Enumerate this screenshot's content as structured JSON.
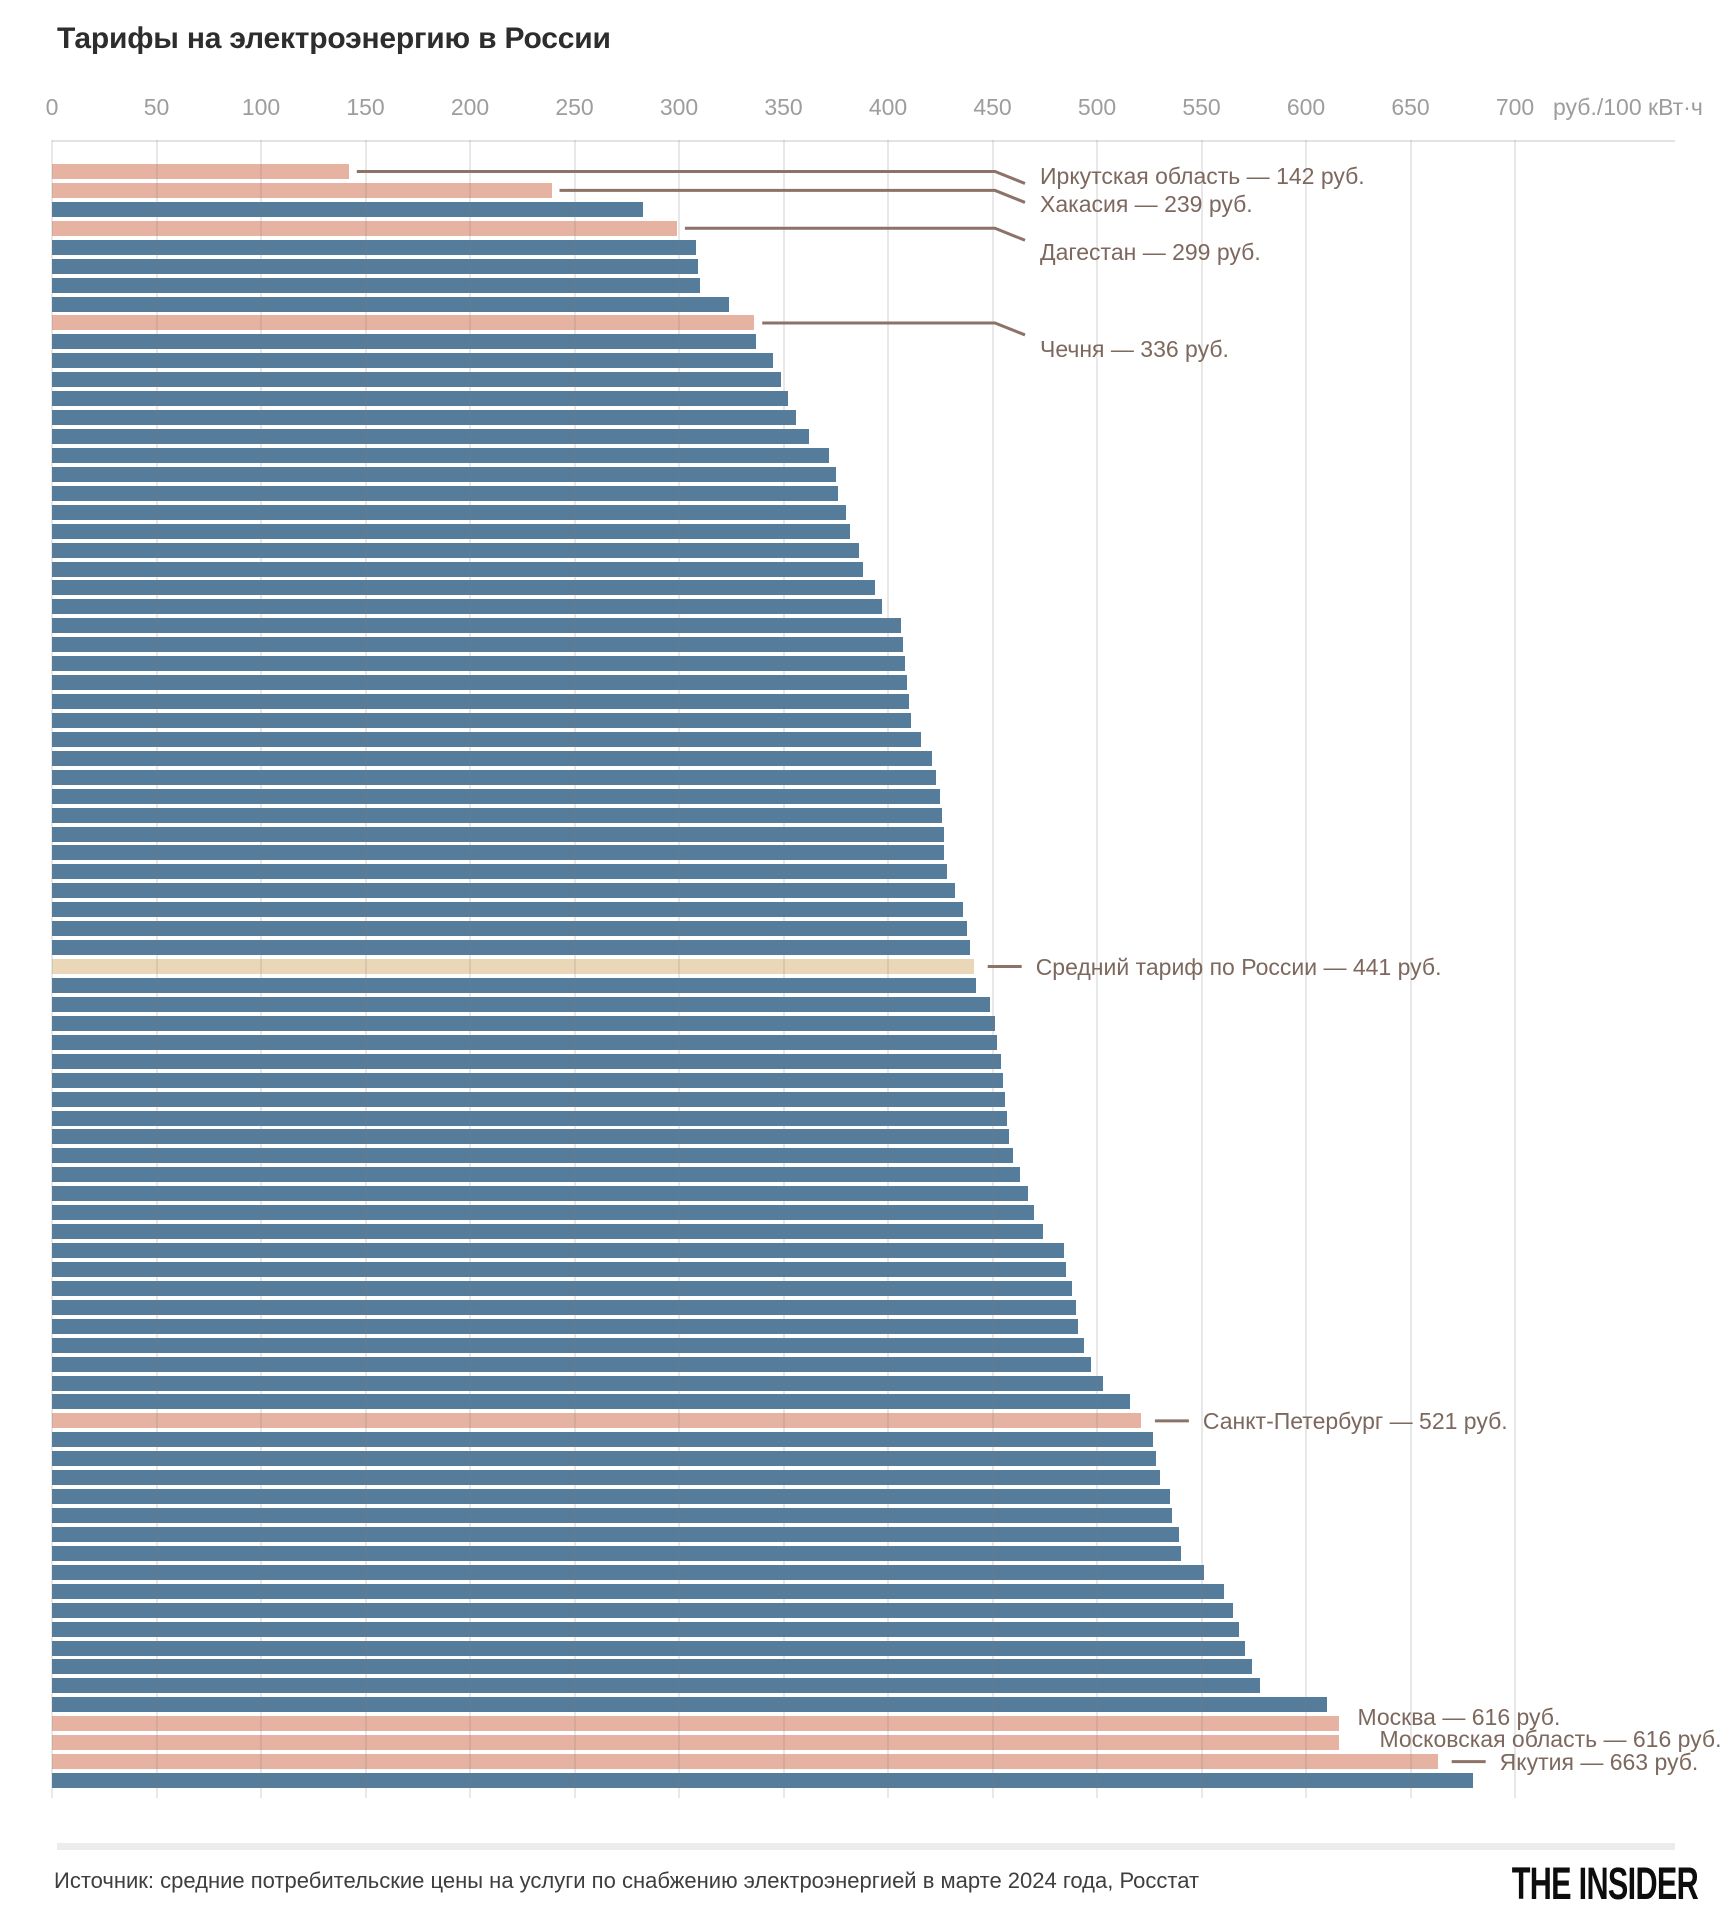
{
  "title": "Тарифы на электроэнергию в России",
  "axis": {
    "ticks": [
      0,
      50,
      100,
      150,
      200,
      250,
      300,
      350,
      400,
      450,
      500,
      550,
      600,
      650,
      700
    ],
    "unit": "руб./100 кВт·ч",
    "max": 700
  },
  "chart_data": {
    "type": "bar",
    "orientation": "horizontal",
    "title": "Тарифы на электроэнергию в России",
    "xlabel": "руб./100 кВт·ч",
    "xlim": [
      0,
      700
    ],
    "grid": true,
    "values": [
      142,
      239,
      283,
      299,
      308,
      309,
      310,
      324,
      336,
      337,
      345,
      349,
      352,
      356,
      362,
      372,
      375,
      376,
      380,
      382,
      386,
      388,
      394,
      397,
      406,
      407,
      408,
      409,
      410,
      411,
      416,
      421,
      423,
      425,
      426,
      427,
      427,
      428,
      432,
      436,
      438,
      439,
      441,
      442,
      449,
      451,
      452,
      454,
      455,
      456,
      457,
      458,
      460,
      463,
      467,
      470,
      474,
      484,
      485,
      488,
      490,
      491,
      494,
      497,
      503,
      516,
      521,
      527,
      528,
      530,
      535,
      536,
      539,
      540,
      551,
      561,
      565,
      568,
      571,
      574,
      578,
      610,
      616,
      616,
      663,
      680
    ],
    "highlight_indices": [
      0,
      1,
      3,
      8,
      66,
      82,
      83,
      84
    ],
    "average_index": 42,
    "annotations": [
      {
        "index": 0,
        "region": "Иркутская область",
        "value": 142,
        "label": "Иркутская область — 142 руб.",
        "style": "elbow"
      },
      {
        "index": 1,
        "region": "Хакасия",
        "value": 239,
        "label": "Хакасия — 239 руб.",
        "style": "elbow"
      },
      {
        "index": 3,
        "region": "Дагестан",
        "value": 299,
        "label": "Дагестан — 299 руб.",
        "style": "elbow"
      },
      {
        "index": 8,
        "region": "Чечня",
        "value": 336,
        "label": "Чечня — 336 руб.",
        "style": "elbow"
      },
      {
        "index": 42,
        "region": "Средний тариф по России",
        "value": 441,
        "label": "Средний тариф по России — 441 руб.",
        "style": "dash"
      },
      {
        "index": 66,
        "region": "Санкт-Петербург",
        "value": 521,
        "label": "Санкт-Петербург — 521 руб.",
        "style": "dash"
      },
      {
        "index": 82,
        "region": "Москва",
        "value": 616,
        "label": "Москва — 616 руб.",
        "style": "plain"
      },
      {
        "index": 83,
        "region": "Московская область",
        "value": 616,
        "label": "Московская область — 616 руб.",
        "style": "plain"
      },
      {
        "index": 84,
        "region": "Якутия",
        "value": 663,
        "label": "Якутия — 663 руб.",
        "style": "dash"
      }
    ]
  },
  "colors": {
    "bar": "#557c9b",
    "highlight": "#e6b3a3",
    "average": "#ead7b8",
    "leader_line": "#8d7268",
    "annotation_text": "#7d685e",
    "tick_text": "#9d9d9d",
    "gridline": "#e3e3e3"
  },
  "footer": {
    "source": "Источник: средние потребительские цены на услуги по снабжению электроэнергией в марте 2024 года, Росстат",
    "logo": "THE INSIDER"
  }
}
